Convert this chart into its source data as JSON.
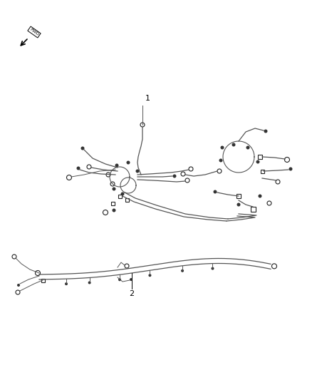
{
  "background_color": "#ffffff",
  "wire_color": "#555555",
  "wire_linewidth": 0.9,
  "thin_wire": 0.7,
  "connector_color": "#222222",
  "label_color": "#000000",
  "label_fontsize": 8,
  "item_label_1": "1",
  "item_label_2": "2"
}
